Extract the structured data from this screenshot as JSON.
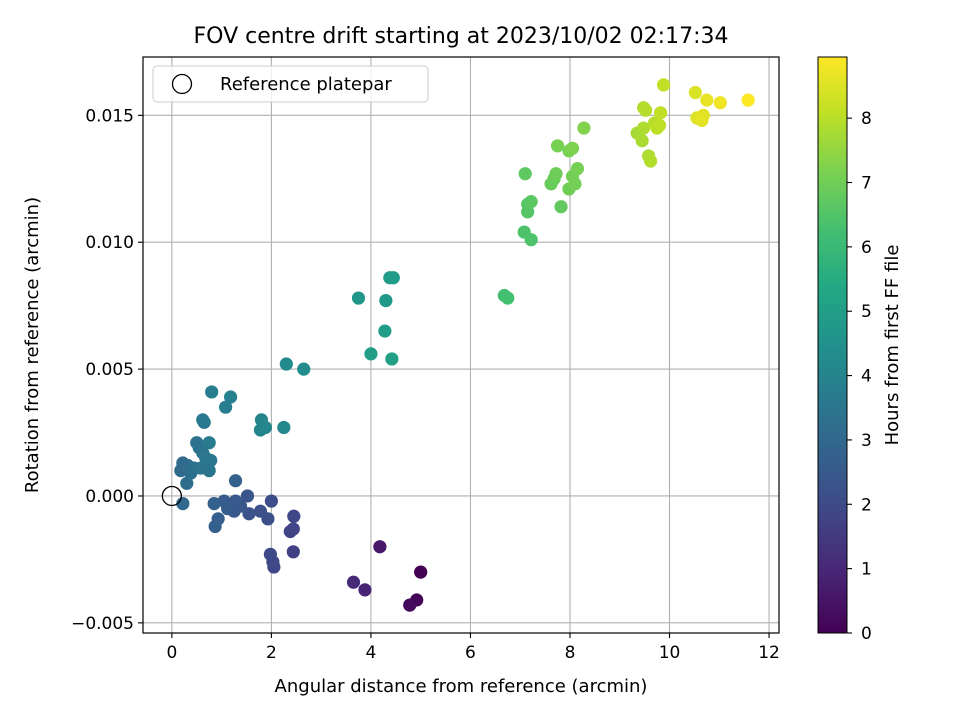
{
  "chart_data": {
    "type": "scatter",
    "title": "FOV centre drift starting at 2023/10/02 02:17:34",
    "xlabel": "Angular distance from reference (arcmin)",
    "ylabel": "Rotation from reference (arcmin)",
    "xlim": [
      -0.58,
      12.2
    ],
    "ylim": [
      -0.0054,
      0.0173
    ],
    "xticks": [
      0,
      2,
      4,
      6,
      8,
      10,
      12
    ],
    "xtick_labels": [
      "0",
      "2",
      "4",
      "6",
      "8",
      "10",
      "12"
    ],
    "yticks": [
      -0.005,
      0.0,
      0.005,
      0.01,
      0.015
    ],
    "ytick_labels": [
      "−0.005",
      "0.000",
      "0.005",
      "0.010",
      "0.015"
    ],
    "grid": true,
    "legend": {
      "placement": "top-left",
      "entries": [
        "Reference platepar"
      ]
    },
    "colorbar": {
      "label": "Hours from first FF file",
      "min": 0,
      "max": 8.95,
      "ticks": [
        0,
        1,
        2,
        3,
        4,
        5,
        6,
        7,
        8
      ],
      "colormap": "viridis"
    },
    "reference_point": {
      "x": 0,
      "y": 0
    },
    "series": [
      {
        "points": [
          [
            5.0,
            -0.003,
            0.0
          ],
          [
            4.92,
            -0.0041,
            0.1
          ],
          [
            4.78,
            -0.0043,
            0.2
          ],
          [
            4.18,
            -0.002,
            0.6
          ],
          [
            3.88,
            -0.0037,
            0.9
          ],
          [
            3.65,
            -0.0034,
            1.1
          ],
          [
            2.44,
            -0.0022,
            1.7
          ],
          [
            2.38,
            -0.0014,
            1.8
          ],
          [
            2.44,
            -0.0013,
            1.8
          ],
          [
            2.45,
            -0.0008,
            1.9
          ],
          [
            2.05,
            -0.0028,
            1.9
          ],
          [
            2.03,
            -0.0026,
            1.95
          ],
          [
            1.98,
            -0.0023,
            2.0
          ],
          [
            2.0,
            -0.0002,
            2.1
          ],
          [
            1.93,
            -0.0009,
            2.15
          ],
          [
            1.78,
            -0.0006,
            2.2
          ],
          [
            1.55,
            -0.0007,
            2.3
          ],
          [
            1.52,
            0.0,
            2.35
          ],
          [
            1.38,
            -0.0004,
            2.4
          ],
          [
            1.25,
            -0.0006,
            2.45
          ],
          [
            1.28,
            -0.0002,
            2.5
          ],
          [
            1.05,
            -0.0002,
            2.55
          ],
          [
            1.12,
            -0.0005,
            2.6
          ],
          [
            0.93,
            -0.0009,
            2.65
          ],
          [
            0.87,
            -0.0012,
            2.7
          ],
          [
            0.85,
            -0.0003,
            2.75
          ],
          [
            1.28,
            0.0006,
            2.8
          ],
          [
            0.22,
            -0.0003,
            3.0
          ],
          [
            0.22,
            0.0013,
            3.05
          ],
          [
            0.18,
            0.001,
            3.1
          ],
          [
            0.32,
            0.0012,
            3.15
          ],
          [
            0.3,
            0.0005,
            3.2
          ],
          [
            0.38,
            0.0009,
            3.25
          ],
          [
            0.45,
            0.0011,
            3.3
          ],
          [
            0.55,
            0.0019,
            3.3
          ],
          [
            0.5,
            0.0021,
            3.35
          ],
          [
            0.62,
            0.0017,
            3.4
          ],
          [
            0.58,
            0.0011,
            3.45
          ],
          [
            0.75,
            0.001,
            3.5
          ],
          [
            0.78,
            0.0014,
            3.5
          ],
          [
            0.68,
            0.0015,
            3.55
          ],
          [
            0.65,
            0.0029,
            3.6
          ],
          [
            0.62,
            0.003,
            3.65
          ],
          [
            0.75,
            0.0021,
            3.7
          ],
          [
            0.8,
            0.0041,
            3.75
          ],
          [
            1.08,
            0.0035,
            3.8
          ],
          [
            1.18,
            0.0039,
            3.85
          ],
          [
            1.8,
            0.003,
            4.0
          ],
          [
            1.78,
            0.0026,
            4.05
          ],
          [
            1.88,
            0.0027,
            4.1
          ],
          [
            2.25,
            0.0027,
            4.15
          ],
          [
            2.3,
            0.0052,
            4.25
          ],
          [
            2.65,
            0.005,
            4.3
          ],
          [
            3.75,
            0.0078,
            4.7
          ],
          [
            4.3,
            0.0077,
            4.8
          ],
          [
            4.38,
            0.0086,
            4.85
          ],
          [
            4.45,
            0.0086,
            4.9
          ],
          [
            4.28,
            0.0065,
            4.95
          ],
          [
            4.0,
            0.0056,
            5.0
          ],
          [
            4.42,
            0.0054,
            5.05
          ],
          [
            6.68,
            0.0079,
            6.2
          ],
          [
            6.75,
            0.0078,
            6.25
          ],
          [
            7.08,
            0.0104,
            6.4
          ],
          [
            7.22,
            0.0101,
            6.45
          ],
          [
            7.15,
            0.0112,
            6.55
          ],
          [
            7.15,
            0.0115,
            6.6
          ],
          [
            7.22,
            0.0116,
            6.65
          ],
          [
            7.1,
            0.0127,
            6.7
          ],
          [
            7.82,
            0.0114,
            6.75
          ],
          [
            7.62,
            0.0123,
            6.85
          ],
          [
            7.68,
            0.0125,
            6.9
          ],
          [
            7.72,
            0.0127,
            6.95
          ],
          [
            7.98,
            0.0121,
            7.0
          ],
          [
            8.1,
            0.0123,
            7.05
          ],
          [
            8.05,
            0.0126,
            7.05
          ],
          [
            8.15,
            0.0129,
            7.1
          ],
          [
            7.75,
            0.0138,
            7.1
          ],
          [
            7.98,
            0.0136,
            7.15
          ],
          [
            8.05,
            0.0137,
            7.2
          ],
          [
            8.28,
            0.0145,
            7.25
          ],
          [
            9.35,
            0.0143,
            7.75
          ],
          [
            9.45,
            0.014,
            7.8
          ],
          [
            9.48,
            0.0145,
            7.85
          ],
          [
            9.58,
            0.0134,
            7.85
          ],
          [
            9.62,
            0.0132,
            7.9
          ],
          [
            9.48,
            0.0153,
            7.9
          ],
          [
            9.52,
            0.0152,
            7.95
          ],
          [
            9.7,
            0.0147,
            8.0
          ],
          [
            9.8,
            0.0146,
            8.05
          ],
          [
            9.75,
            0.0145,
            8.05
          ],
          [
            9.82,
            0.0151,
            8.1
          ],
          [
            9.88,
            0.0162,
            8.15
          ],
          [
            10.52,
            0.0159,
            8.45
          ],
          [
            10.55,
            0.0149,
            8.5
          ],
          [
            10.68,
            0.015,
            8.55
          ],
          [
            10.65,
            0.0148,
            8.6
          ],
          [
            10.75,
            0.0156,
            8.65
          ],
          [
            11.02,
            0.0155,
            8.75
          ],
          [
            11.58,
            0.0156,
            8.95
          ]
        ]
      }
    ]
  }
}
